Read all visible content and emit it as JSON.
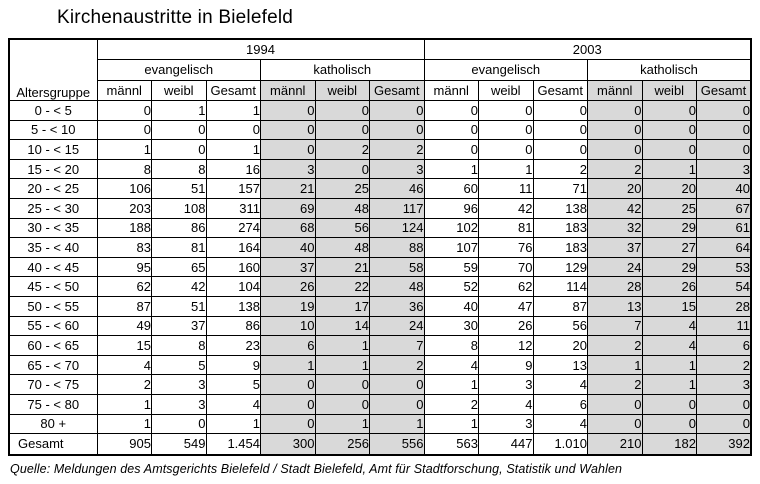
{
  "title": "Kirchenaustritte in Bielefeld",
  "source": "Quelle: Meldungen des Amtsgerichts Bielefeld / Stadt Bielefeld, Amt für Stadtforschung, Statistik und Wahlen",
  "colors": {
    "shaded_column_bg": "#d9d9d9",
    "border": "#000000",
    "text": "#000000",
    "page_bg": "#ffffff"
  },
  "table": {
    "row_header": "Altersgruppe",
    "year_groups": [
      "1994",
      "2003"
    ],
    "confessions": [
      "evangelisch",
      "katholisch"
    ],
    "sub_columns": [
      "männl",
      "weibl",
      "Gesamt"
    ],
    "rows": [
      {
        "label": "0 - < 5",
        "values": [
          "0",
          "1",
          "1",
          "0",
          "0",
          "0",
          "0",
          "0",
          "0",
          "0",
          "0",
          "0"
        ]
      },
      {
        "label": "5 - < 10",
        "values": [
          "0",
          "0",
          "0",
          "0",
          "0",
          "0",
          "0",
          "0",
          "0",
          "0",
          "0",
          "0"
        ]
      },
      {
        "label": "10 - < 15",
        "values": [
          "1",
          "0",
          "1",
          "0",
          "2",
          "2",
          "0",
          "0",
          "0",
          "0",
          "0",
          "0"
        ]
      },
      {
        "label": "15 - < 20",
        "values": [
          "8",
          "8",
          "16",
          "3",
          "0",
          "3",
          "1",
          "1",
          "2",
          "2",
          "1",
          "3"
        ]
      },
      {
        "label": "20 - < 25",
        "values": [
          "106",
          "51",
          "157",
          "21",
          "25",
          "46",
          "60",
          "11",
          "71",
          "20",
          "20",
          "40"
        ]
      },
      {
        "label": "25 - < 30",
        "values": [
          "203",
          "108",
          "311",
          "69",
          "48",
          "117",
          "96",
          "42",
          "138",
          "42",
          "25",
          "67"
        ]
      },
      {
        "label": "30 - < 35",
        "values": [
          "188",
          "86",
          "274",
          "68",
          "56",
          "124",
          "102",
          "81",
          "183",
          "32",
          "29",
          "61"
        ]
      },
      {
        "label": "35 - < 40",
        "values": [
          "83",
          "81",
          "164",
          "40",
          "48",
          "88",
          "107",
          "76",
          "183",
          "37",
          "27",
          "64"
        ]
      },
      {
        "label": "40 - < 45",
        "values": [
          "95",
          "65",
          "160",
          "37",
          "21",
          "58",
          "59",
          "70",
          "129",
          "24",
          "29",
          "53"
        ]
      },
      {
        "label": "45 - < 50",
        "values": [
          "62",
          "42",
          "104",
          "26",
          "22",
          "48",
          "52",
          "62",
          "114",
          "28",
          "26",
          "54"
        ]
      },
      {
        "label": "50 - < 55",
        "values": [
          "87",
          "51",
          "138",
          "19",
          "17",
          "36",
          "40",
          "47",
          "87",
          "13",
          "15",
          "28"
        ]
      },
      {
        "label": "55 - < 60",
        "values": [
          "49",
          "37",
          "86",
          "10",
          "14",
          "24",
          "30",
          "26",
          "56",
          "7",
          "4",
          "11"
        ]
      },
      {
        "label": "60 - < 65",
        "values": [
          "15",
          "8",
          "23",
          "6",
          "1",
          "7",
          "8",
          "12",
          "20",
          "2",
          "4",
          "6"
        ]
      },
      {
        "label": "65 - < 70",
        "values": [
          "4",
          "5",
          "9",
          "1",
          "1",
          "2",
          "4",
          "9",
          "13",
          "1",
          "1",
          "2"
        ]
      },
      {
        "label": "70 - < 75",
        "values": [
          "2",
          "3",
          "5",
          "0",
          "0",
          "0",
          "1",
          "3",
          "4",
          "2",
          "1",
          "3"
        ]
      },
      {
        "label": "75 - < 80",
        "values": [
          "1",
          "3",
          "4",
          "0",
          "0",
          "0",
          "2",
          "4",
          "6",
          "0",
          "0",
          "0"
        ]
      },
      {
        "label": "80 +",
        "values": [
          "1",
          "0",
          "1",
          "0",
          "1",
          "1",
          "1",
          "3",
          "4",
          "0",
          "0",
          "0"
        ]
      }
    ],
    "total_row": {
      "label": "Gesamt",
      "values": [
        "905",
        "549",
        "1.454",
        "300",
        "256",
        "556",
        "563",
        "447",
        "1.010",
        "210",
        "182",
        "392"
      ]
    }
  }
}
